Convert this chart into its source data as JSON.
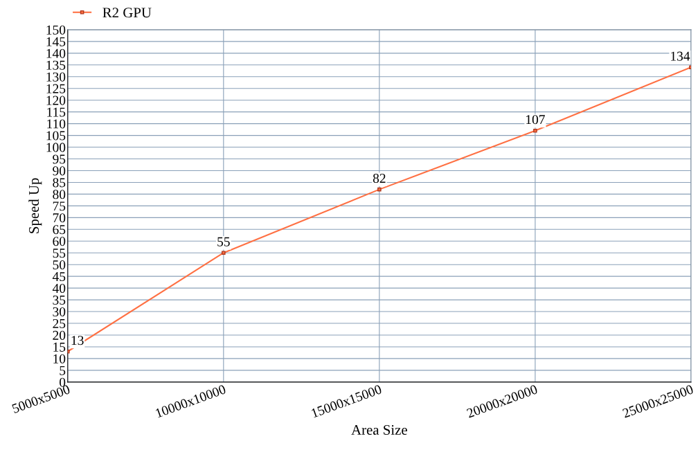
{
  "chart_data": {
    "type": "line",
    "xlabel": "Area Size",
    "ylabel": "Speed Up",
    "categories": [
      "5000x5000",
      "10000x10000",
      "15000x15000",
      "20000x20000",
      "25000x25000"
    ],
    "series": [
      {
        "name": "R2 GPU",
        "color": "#ff7043",
        "values": [
          13,
          55,
          82,
          107,
          134
        ]
      }
    ],
    "ylim": [
      0,
      150
    ],
    "yticks": [
      0,
      5,
      10,
      15,
      20,
      25,
      30,
      35,
      40,
      45,
      50,
      55,
      60,
      65,
      70,
      75,
      80,
      85,
      90,
      95,
      100,
      105,
      110,
      115,
      120,
      125,
      130,
      135,
      140,
      145,
      150
    ],
    "grid": true,
    "legend": "top left",
    "marker": "square",
    "line_style": "solid",
    "data_labels": true
  }
}
